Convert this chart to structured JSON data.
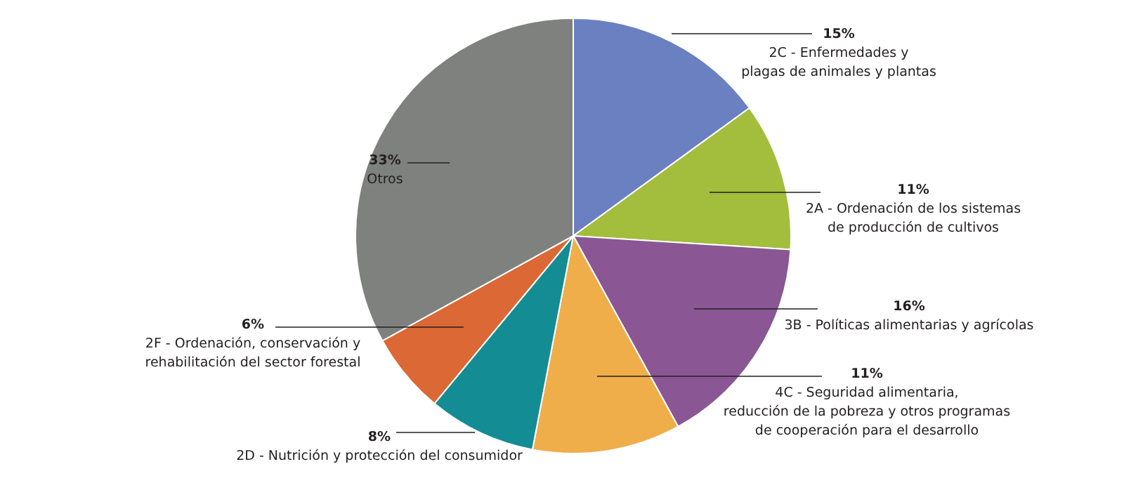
{
  "chart_data": {
    "type": "pie",
    "categories": [
      "2C - Enfermedades y\nplagas de animales y plantas",
      "2A - Ordenación de los sistemas\nde producción de cultivos",
      "3B - Políticas alimentarias y agrícolas",
      "4C - Seguridad alimentaria,\nreducción de la pobreza y otros programas\nde cooperación para el desarrollo",
      "2D - Nutrición y protección del consumidor",
      "2F - Ordenación, conservación y\nrehabilitación del sector forestal",
      "Otros"
    ],
    "values": [
      15,
      11,
      16,
      11,
      8,
      6,
      33
    ],
    "value_labels": [
      "15%",
      "11%",
      "16%",
      "11%",
      "8%",
      "6%",
      "33%"
    ],
    "colors": [
      "#6b80c0",
      "#a3bd3c",
      "#8a5694",
      "#efae4a",
      "#148c94",
      "#dc6835",
      "#7f817e"
    ],
    "legend": false
  }
}
